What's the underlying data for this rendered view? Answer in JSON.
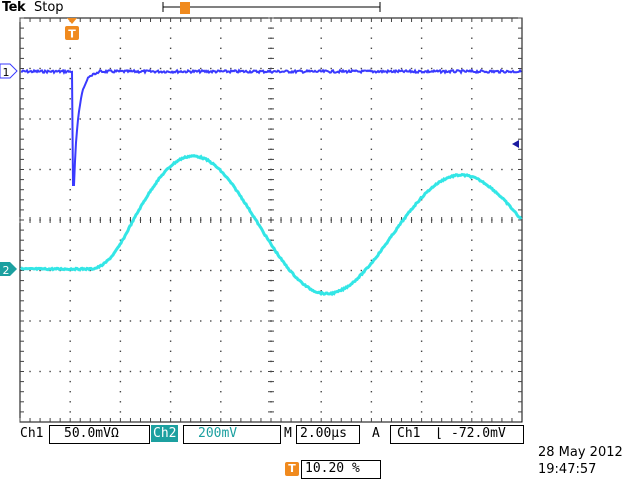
{
  "header": {
    "brand": "Tek",
    "state": "Stop"
  },
  "channels": {
    "ch1": {
      "marker": "1",
      "color": "#3a3aff"
    },
    "ch2": {
      "marker": "2",
      "color": "#33e6e6"
    }
  },
  "trigger": {
    "marker": "T",
    "color": "#f08a1e"
  },
  "readout": {
    "ch1_label": "Ch1",
    "ch1_scale": "50.0mVΩ",
    "ch2_label": "Ch2",
    "ch2_scale": "200mV",
    "time_label": "M",
    "time_scale": "2.00µs",
    "trig_mode": "A",
    "trig_source": "Ch1",
    "trig_level": "-72.0mV",
    "trig_position": "10.20 %"
  },
  "datetime": {
    "date": "28 May 2012",
    "time": "19:47:57"
  }
}
